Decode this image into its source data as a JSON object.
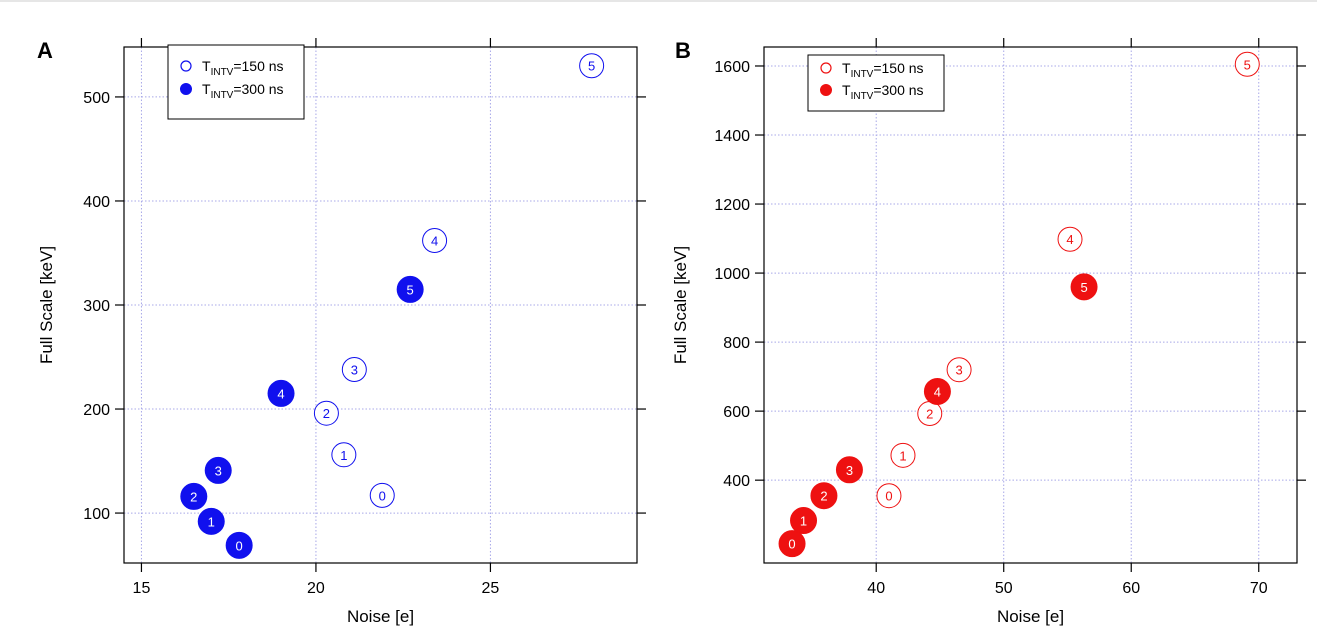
{
  "chart_data": [
    {
      "type": "scatter",
      "panel_label": "A",
      "xlabel": "Noise [e]",
      "ylabel": "Full Scale [keV]",
      "xlim": [
        14.5,
        29.2
      ],
      "ylim": [
        52,
        548
      ],
      "xticks": [
        15,
        20,
        25
      ],
      "yticks": [
        100,
        200,
        300,
        400,
        500
      ],
      "grid": true,
      "legend_position": "top-left",
      "color": "#1010ee",
      "series": [
        {
          "name": "T_INTV=150 ns",
          "legend_main": "T",
          "legend_sub": "INTV",
          "legend_rest": "=150 ns",
          "style": "open",
          "points": [
            {
              "label": "0",
              "x": 21.9,
              "y": 117
            },
            {
              "label": "1",
              "x": 20.8,
              "y": 156
            },
            {
              "label": "2",
              "x": 20.3,
              "y": 196
            },
            {
              "label": "3",
              "x": 21.1,
              "y": 238
            },
            {
              "label": "4",
              "x": 23.4,
              "y": 362
            },
            {
              "label": "5",
              "x": 27.9,
              "y": 530
            }
          ]
        },
        {
          "name": "T_INTV=300 ns",
          "legend_main": "T",
          "legend_sub": "INTV",
          "legend_rest": "=300 ns",
          "style": "filled",
          "points": [
            {
              "label": "0",
              "x": 17.8,
              "y": 69
            },
            {
              "label": "1",
              "x": 17.0,
              "y": 92
            },
            {
              "label": "2",
              "x": 16.5,
              "y": 116
            },
            {
              "label": "3",
              "x": 17.2,
              "y": 141
            },
            {
              "label": "4",
              "x": 19.0,
              "y": 215
            },
            {
              "label": "5",
              "x": 22.7,
              "y": 315
            }
          ]
        }
      ]
    },
    {
      "type": "scatter",
      "panel_label": "B",
      "xlabel": "Noise [e]",
      "ylabel": "Full Scale [keV]",
      "xlim": [
        31.2,
        73
      ],
      "ylim": [
        160,
        1655
      ],
      "xticks": [
        40,
        50,
        60,
        70
      ],
      "yticks": [
        400,
        600,
        800,
        1000,
        1200,
        1400,
        1600
      ],
      "grid": true,
      "legend_position": "top-left",
      "color": "#ee1111",
      "series": [
        {
          "name": "T_INTV=150 ns",
          "legend_main": "T",
          "legend_sub": "INTV",
          "legend_rest": "=150 ns",
          "style": "open",
          "points": [
            {
              "label": "0",
              "x": 41.0,
              "y": 355
            },
            {
              "label": "1",
              "x": 42.1,
              "y": 472
            },
            {
              "label": "2",
              "x": 44.2,
              "y": 593
            },
            {
              "label": "3",
              "x": 46.5,
              "y": 720
            },
            {
              "label": "4",
              "x": 55.2,
              "y": 1098
            },
            {
              "label": "5",
              "x": 69.1,
              "y": 1605
            }
          ]
        },
        {
          "name": "T_INTV=300 ns",
          "legend_main": "T",
          "legend_sub": "INTV",
          "legend_rest": "=300 ns",
          "style": "filled",
          "points": [
            {
              "label": "0",
              "x": 33.4,
              "y": 216
            },
            {
              "label": "1",
              "x": 34.3,
              "y": 283
            },
            {
              "label": "2",
              "x": 35.9,
              "y": 355
            },
            {
              "label": "3",
              "x": 37.9,
              "y": 430
            },
            {
              "label": "4",
              "x": 44.8,
              "y": 657
            },
            {
              "label": "5",
              "x": 56.3,
              "y": 960
            }
          ]
        }
      ]
    }
  ]
}
